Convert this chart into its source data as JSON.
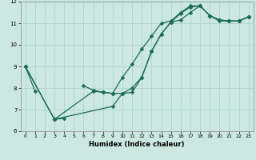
{
  "title": "",
  "xlabel": "Humidex (Indice chaleur)",
  "bg_color": "#cce8e0",
  "grid_color": "#aad0c8",
  "line_color": "#1a6b5a",
  "xlim": [
    -0.5,
    23.5
  ],
  "ylim": [
    6,
    12
  ],
  "xticks": [
    0,
    1,
    2,
    3,
    4,
    5,
    6,
    7,
    8,
    9,
    10,
    11,
    12,
    13,
    14,
    15,
    16,
    17,
    18,
    19,
    20,
    21,
    22,
    23
  ],
  "yticks": [
    6,
    7,
    8,
    9,
    10,
    11,
    12
  ],
  "series": [
    {
      "x": [
        0,
        1,
        2,
        3,
        4,
        5,
        6,
        7,
        8,
        9,
        10,
        11,
        12,
        13,
        14,
        15,
        16,
        17,
        18,
        19,
        20,
        21,
        22,
        23
      ],
      "y": [
        9.0,
        7.85,
        null,
        6.55,
        6.6,
        null,
        8.1,
        7.9,
        7.8,
        7.75,
        8.5,
        9.1,
        9.8,
        10.4,
        11.0,
        11.1,
        11.5,
        11.8,
        11.8,
        11.35,
        11.1,
        11.1,
        11.1,
        11.3
      ],
      "style": "-"
    },
    {
      "x": [
        0,
        3,
        7,
        8,
        9,
        10,
        11,
        12,
        13,
        14,
        15,
        16,
        17,
        18,
        19,
        20,
        21,
        22,
        23
      ],
      "y": [
        9.0,
        6.55,
        7.85,
        7.8,
        7.75,
        7.75,
        8.0,
        8.5,
        9.7,
        10.5,
        11.05,
        11.45,
        11.75,
        11.8,
        11.35,
        11.15,
        11.1,
        11.1,
        11.3
      ],
      "style": "-"
    },
    {
      "x": [
        0,
        3,
        9,
        10,
        11,
        12,
        13,
        14,
        15,
        16,
        17,
        18,
        19,
        20,
        21,
        22,
        23
      ],
      "y": [
        9.0,
        6.55,
        7.15,
        7.75,
        7.8,
        8.5,
        9.7,
        10.5,
        11.05,
        11.15,
        11.5,
        11.8,
        11.35,
        11.15,
        11.1,
        11.1,
        11.3
      ],
      "style": "-"
    }
  ]
}
